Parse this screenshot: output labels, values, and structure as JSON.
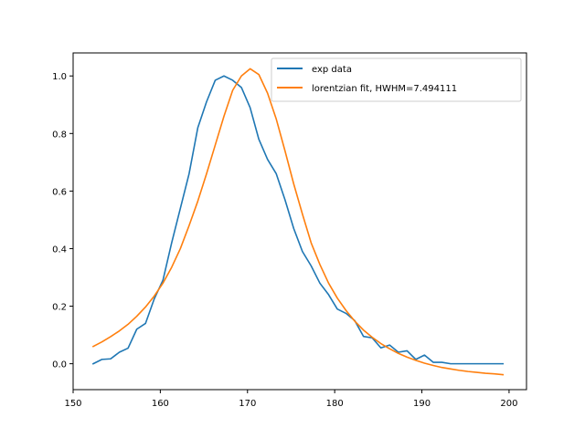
{
  "chart_data": {
    "type": "line",
    "title": "",
    "xlabel": "",
    "ylabel": "",
    "xlim": [
      150,
      202
    ],
    "ylim": [
      -0.09,
      1.08
    ],
    "xticks": [
      150,
      160,
      170,
      180,
      190,
      200
    ],
    "yticks": [
      0.0,
      0.2,
      0.4,
      0.6,
      0.8,
      1.0
    ],
    "xtick_labels": [
      "150",
      "160",
      "170",
      "180",
      "190",
      "200"
    ],
    "ytick_labels": [
      "0.0",
      "0.2",
      "0.4",
      "0.6",
      "0.8",
      "1.0"
    ],
    "grid": false,
    "legend": {
      "placement": "upper right"
    },
    "series": [
      {
        "name": "exp data",
        "color": "#1f77b4",
        "x": [
          152.3,
          153.3,
          154.3,
          155.3,
          156.3,
          157.3,
          158.3,
          159.3,
          160.3,
          161.3,
          162.3,
          163.3,
          164.3,
          165.3,
          166.3,
          167.3,
          168.3,
          169.3,
          170.3,
          171.3,
          172.3,
          173.3,
          174.3,
          175.3,
          176.3,
          177.3,
          178.3,
          179.3,
          180.3,
          181.3,
          182.3,
          183.3,
          184.3,
          185.3,
          186.3,
          187.3,
          188.3,
          189.3,
          190.3,
          191.3,
          192.3,
          193.3,
          194.3,
          195.3,
          196.3,
          197.3,
          198.3,
          199.3
        ],
        "y": [
          0.0,
          0.015,
          0.017,
          0.04,
          0.054,
          0.12,
          0.14,
          0.225,
          0.29,
          0.42,
          0.54,
          0.66,
          0.82,
          0.91,
          0.985,
          1.0,
          0.985,
          0.96,
          0.89,
          0.78,
          0.71,
          0.66,
          0.57,
          0.47,
          0.39,
          0.34,
          0.28,
          0.24,
          0.19,
          0.175,
          0.15,
          0.095,
          0.09,
          0.055,
          0.065,
          0.04,
          0.045,
          0.015,
          0.03,
          0.005,
          0.005,
          0.0,
          0.0,
          0.0,
          0.0,
          0.0,
          0.0,
          0.0
        ]
      },
      {
        "name": "lorentzian fit, HWHM=7.494111",
        "color": "#ff7f0e",
        "x": [
          152.3,
          153.3,
          154.3,
          155.3,
          156.3,
          157.3,
          158.3,
          159.3,
          160.3,
          161.3,
          162.3,
          163.3,
          164.3,
          165.3,
          166.3,
          167.3,
          168.3,
          169.3,
          170.3,
          171.3,
          172.3,
          173.3,
          174.3,
          175.3,
          176.3,
          177.3,
          178.3,
          179.3,
          180.3,
          181.3,
          182.3,
          183.3,
          184.3,
          185.3,
          186.3,
          187.3,
          188.3,
          189.3,
          190.3,
          191.3,
          192.3,
          193.3,
          194.3,
          195.3,
          196.3,
          197.3,
          198.3,
          199.3
        ],
        "y": [
          0.06,
          0.076,
          0.094,
          0.114,
          0.137,
          0.165,
          0.197,
          0.235,
          0.28,
          0.335,
          0.4,
          0.48,
          0.565,
          0.66,
          0.76,
          0.86,
          0.95,
          1.0,
          1.025,
          1.005,
          0.94,
          0.85,
          0.74,
          0.625,
          0.52,
          0.42,
          0.345,
          0.28,
          0.228,
          0.185,
          0.148,
          0.117,
          0.092,
          0.07,
          0.052,
          0.036,
          0.023,
          0.012,
          0.002,
          -0.006,
          -0.013,
          -0.018,
          -0.023,
          -0.027,
          -0.03,
          -0.033,
          -0.035,
          -0.038
        ]
      }
    ]
  }
}
